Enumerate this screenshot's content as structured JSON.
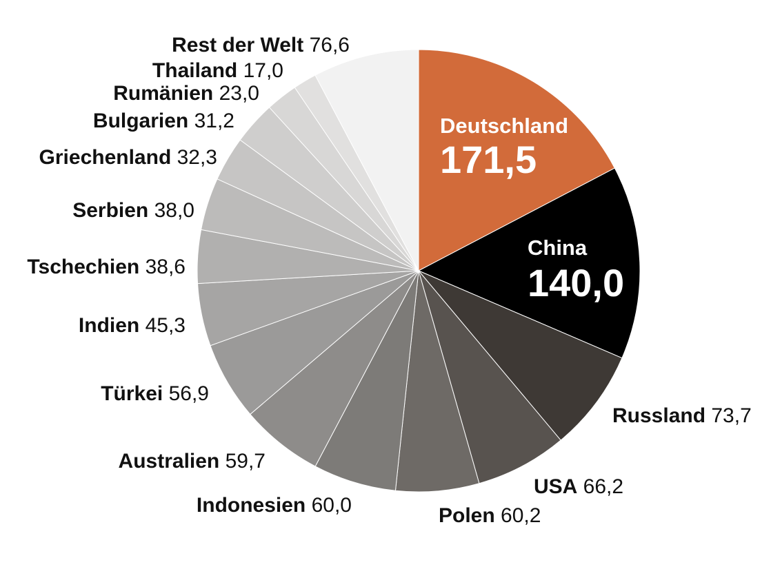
{
  "chart_data": {
    "type": "pie",
    "slices": [
      {
        "label": "Deutschland",
        "value": 171.5,
        "value_text": "171,5",
        "color": "#D26B3A",
        "label_inside": true
      },
      {
        "label": "China",
        "value": 140.0,
        "value_text": "140,0",
        "color": "#000000",
        "label_inside": true
      },
      {
        "label": "Russland",
        "value": 73.7,
        "value_text": "73,7",
        "color": "#3E3935"
      },
      {
        "label": "USA",
        "value": 66.2,
        "value_text": "66,2",
        "color": "#58534F"
      },
      {
        "label": "Polen",
        "value": 60.2,
        "value_text": "60,2",
        "color": "#6E6A66"
      },
      {
        "label": "Indonesien",
        "value": 60.0,
        "value_text": "60,0",
        "color": "#7D7B78"
      },
      {
        "label": "Australien",
        "value": 59.7,
        "value_text": "59,7",
        "color": "#8E8C8A"
      },
      {
        "label": "Türkei",
        "value": 56.9,
        "value_text": "56,9",
        "color": "#9B9A99"
      },
      {
        "label": "Indien",
        "value": 45.3,
        "value_text": "45,3",
        "color": "#A6A5A4"
      },
      {
        "label": "Tschechien",
        "value": 38.6,
        "value_text": "38,6",
        "color": "#B1B0AF"
      },
      {
        "label": "Serbien",
        "value": 38.0,
        "value_text": "38,0",
        "color": "#BCBBBA"
      },
      {
        "label": "Griechenland",
        "value": 32.3,
        "value_text": "32,3",
        "color": "#C6C5C4"
      },
      {
        "label": "Bulgarien",
        "value": 31.2,
        "value_text": "31,2",
        "color": "#CFCECD"
      },
      {
        "label": "Rumänien",
        "value": 23.0,
        "value_text": "23,0",
        "color": "#D8D7D6"
      },
      {
        "label": "Thailand",
        "value": 17.0,
        "value_text": "17,0",
        "color": "#E1E0DF"
      },
      {
        "label": "Rest der Welt",
        "value": 76.6,
        "value_text": "76,6",
        "color": "#F2F2F2"
      }
    ]
  }
}
